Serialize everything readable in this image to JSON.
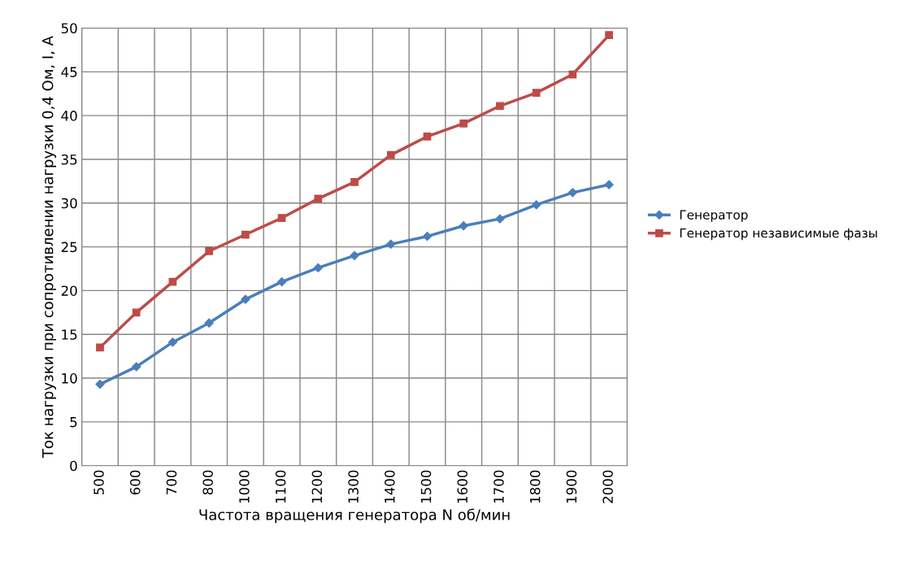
{
  "chart_data": {
    "type": "line",
    "xlabel": "Частота вращения генератора N об/мин",
    "ylabel": "Ток нагрузки при сопротивлении нагрузки 0,4 Ом, I, А",
    "categories": [
      "500",
      "600",
      "700",
      "800",
      "1000",
      "1100",
      "1200",
      "1300",
      "1400",
      "1500",
      "1600",
      "1700",
      "1800",
      "1900",
      "2000"
    ],
    "series": [
      {
        "name": "Генератор",
        "color": "#4a7ebb",
        "marker": "diamond",
        "values": [
          9.3,
          11.3,
          14.1,
          16.3,
          19.0,
          21.0,
          22.6,
          24.0,
          25.3,
          26.2,
          27.4,
          28.2,
          29.8,
          31.2,
          32.1
        ]
      },
      {
        "name": "Генератор независимые фазы",
        "color": "#be4b48",
        "marker": "square",
        "values": [
          13.5,
          17.5,
          21.0,
          24.5,
          26.4,
          28.3,
          30.5,
          32.4,
          35.5,
          37.6,
          39.1,
          41.1,
          42.6,
          44.7,
          49.2
        ]
      }
    ],
    "ylim": [
      0,
      50
    ],
    "yticks": [
      0,
      5,
      10,
      15,
      20,
      25,
      30,
      35,
      40,
      45,
      50
    ],
    "grid": true,
    "legend": "right",
    "line_style": "solid"
  }
}
